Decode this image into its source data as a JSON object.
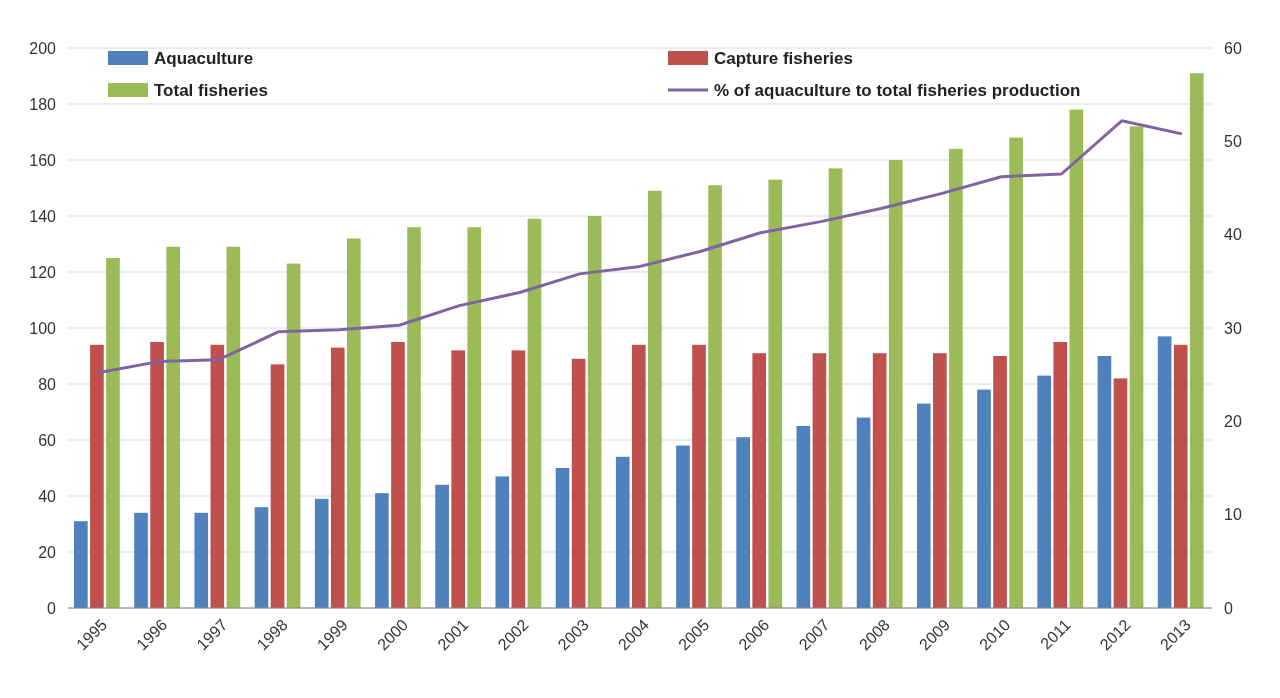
{
  "chart_data": {
    "type": "bar",
    "categories": [
      "1995",
      "1996",
      "1997",
      "1998",
      "1999",
      "2000",
      "2001",
      "2002",
      "2003",
      "2004",
      "2005",
      "2006",
      "2007",
      "2008",
      "2009",
      "2010",
      "2011",
      "2012",
      "2013"
    ],
    "series": [
      {
        "name": "Aquaculture",
        "color": "#4f81bd",
        "values": [
          31,
          34,
          34,
          36,
          39,
          41,
          44,
          47,
          50,
          54,
          58,
          61,
          65,
          68,
          73,
          78,
          83,
          90,
          97
        ]
      },
      {
        "name": "Capture fisheries",
        "color": "#c0504d",
        "values": [
          94,
          95,
          94,
          87,
          93,
          95,
          92,
          92,
          89,
          94,
          94,
          91,
          91,
          91,
          91,
          90,
          95,
          82,
          94
        ]
      },
      {
        "name": "Total fisheries",
        "color": "#9bbb59",
        "values": [
          125,
          129,
          129,
          123,
          132,
          136,
          136,
          139,
          140,
          149,
          151,
          153,
          157,
          160,
          164,
          168,
          178,
          172,
          191
        ]
      },
      {
        "name": "% of aquaculture to total fisheries production",
        "type": "line",
        "axis": "y2",
        "color": "#8064a2",
        "values": [
          25.2,
          26.4,
          26.6,
          29.6,
          29.8,
          30.3,
          32.4,
          33.8,
          35.8,
          36.6,
          38.2,
          40.2,
          41.4,
          42.8,
          44.4,
          46.2,
          46.5,
          52.2,
          50.8
        ]
      }
    ],
    "ylim": [
      0,
      200
    ],
    "yticks": [
      0,
      20,
      40,
      60,
      80,
      100,
      120,
      140,
      160,
      180,
      200
    ],
    "y2lim": [
      0,
      60
    ],
    "y2ticks": [
      0,
      10,
      20,
      30,
      40,
      50,
      60
    ],
    "grid": "y",
    "legend": "top",
    "marker": "none"
  }
}
